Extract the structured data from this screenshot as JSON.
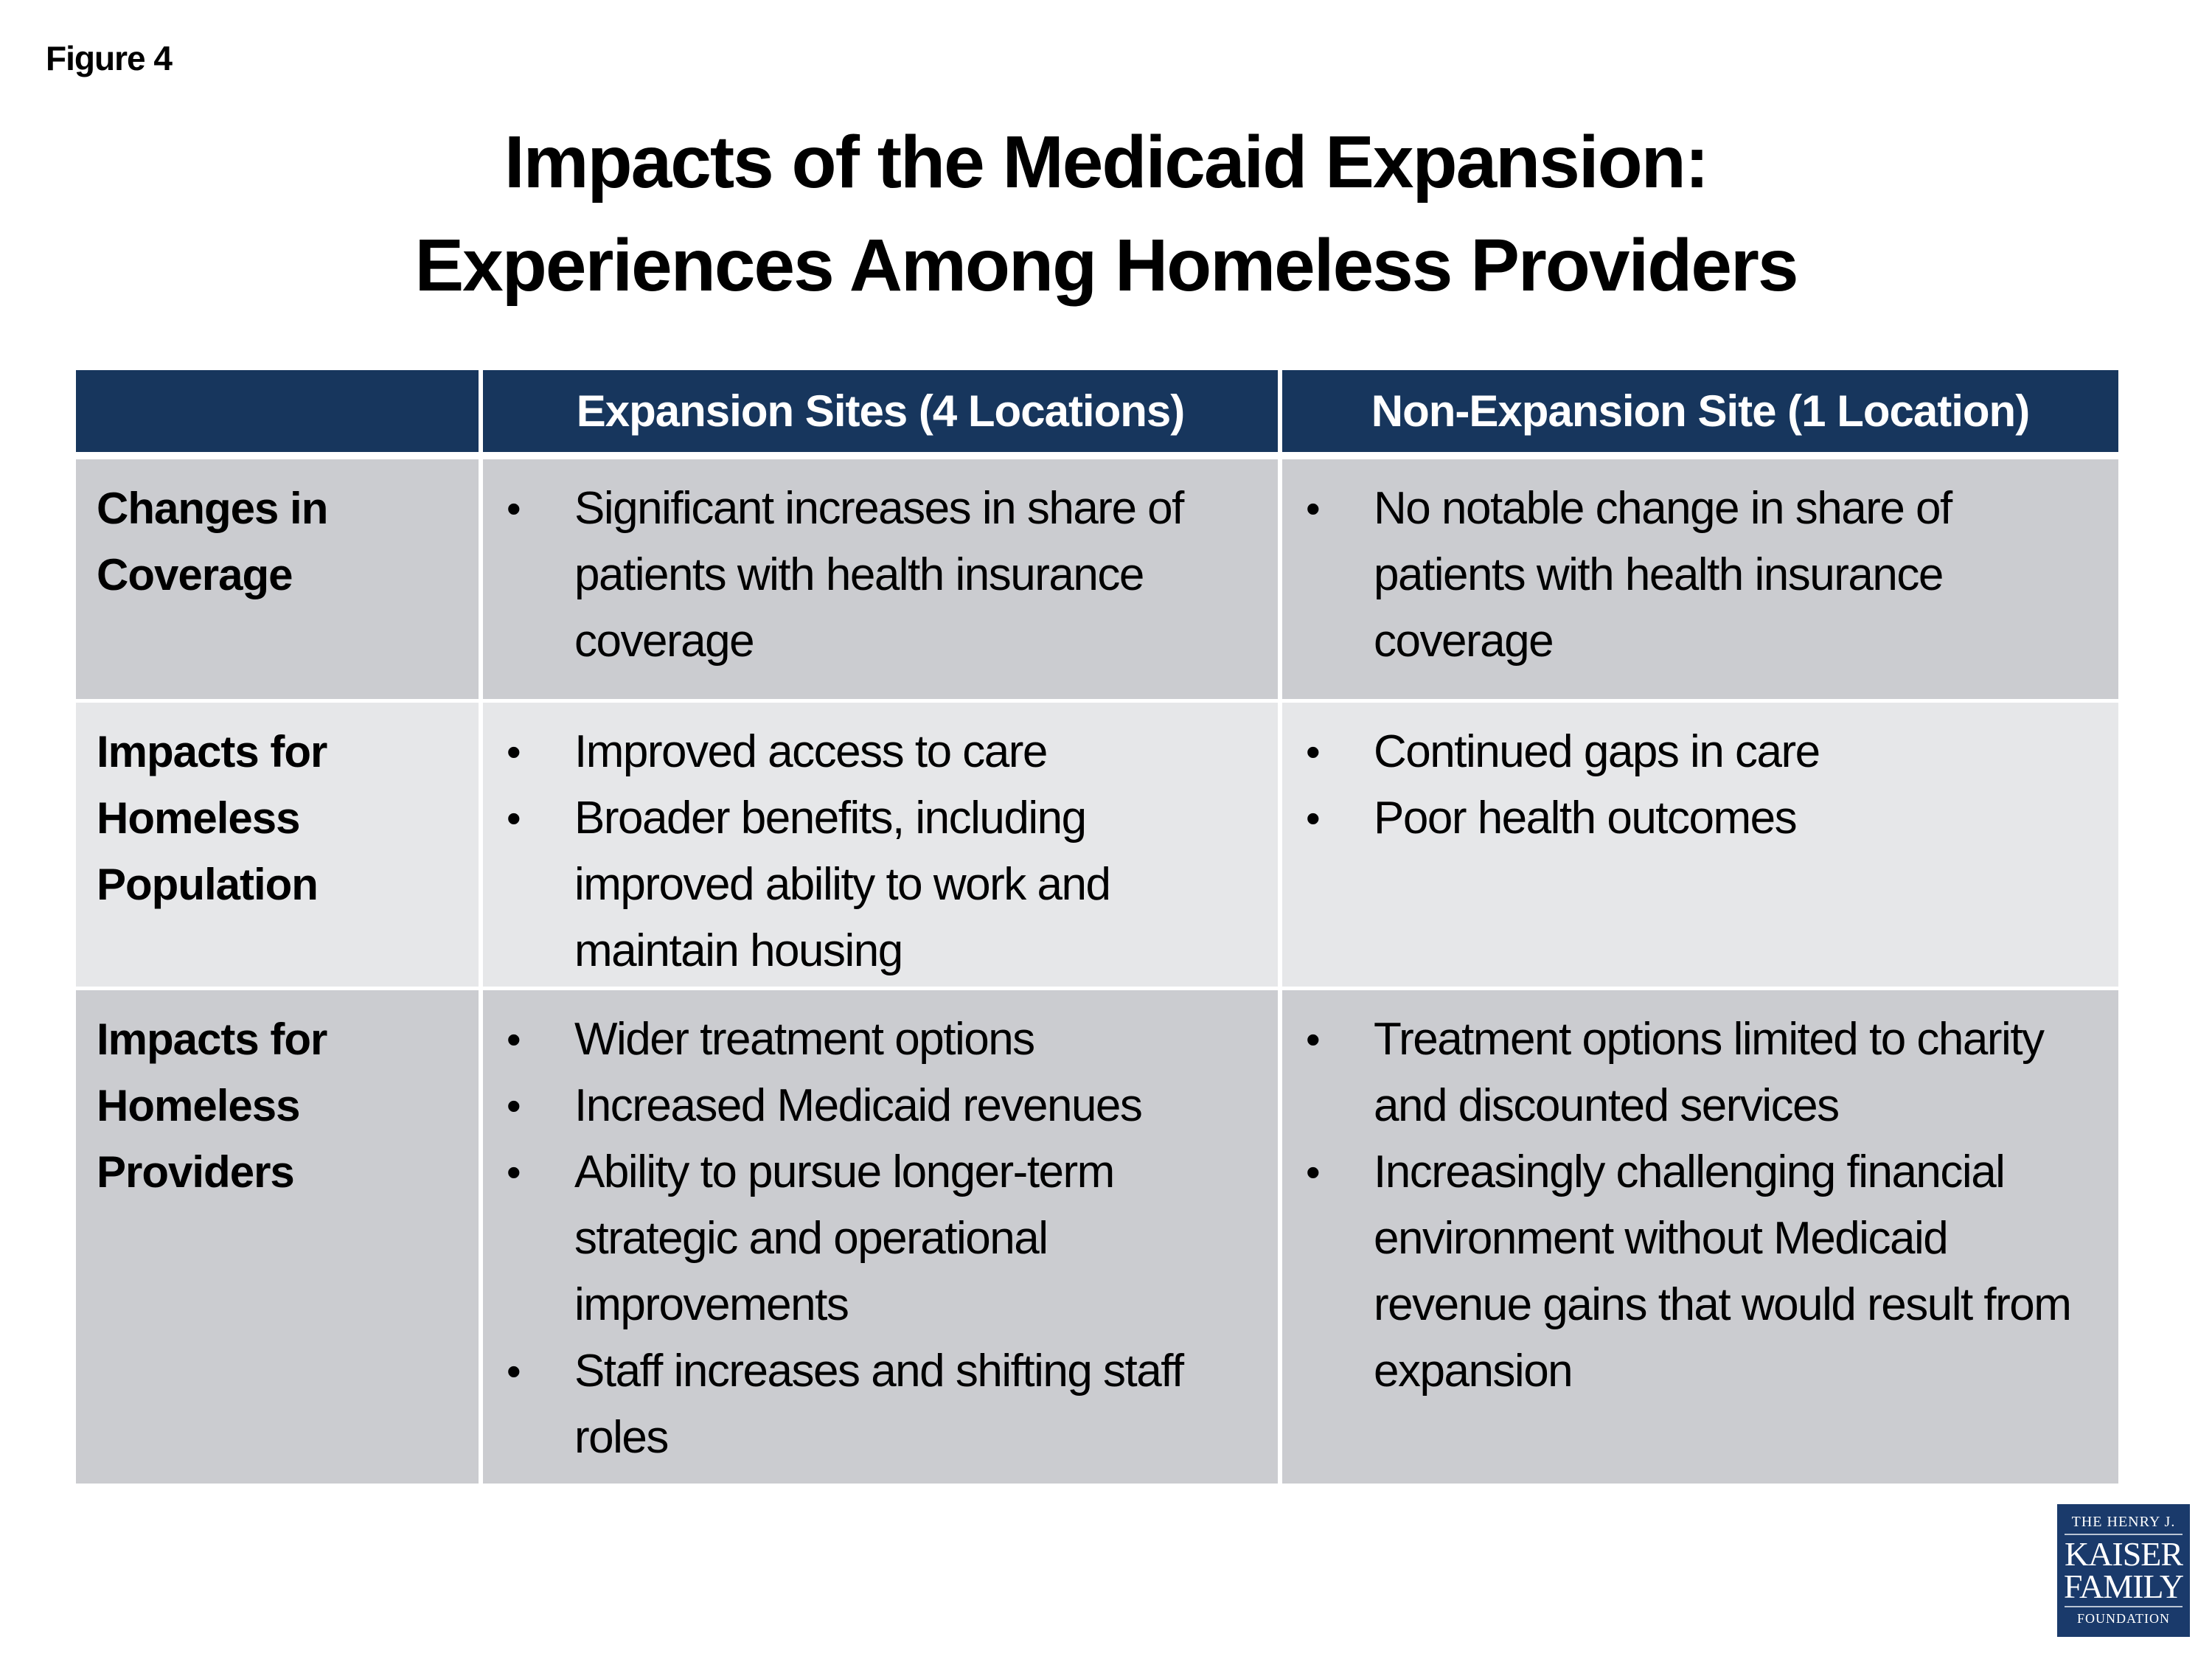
{
  "figure_label": "Figure 4",
  "title": {
    "line1": "Impacts of the Medicaid Expansion:",
    "line2": "Experiences Among Homeless Providers"
  },
  "colors": {
    "header_bg": "#17365D",
    "row_odd_bg": "#CBCCD0",
    "row_even_bg": "#E6E7E9",
    "logo_bg": "#1A3A6B"
  },
  "table": {
    "headers": [
      "",
      "Expansion Sites (4 Locations)",
      "Non-Expansion Site (1 Location)"
    ],
    "rows": [
      {
        "label": [
          "Changes in",
          "Coverage"
        ],
        "expansion": [
          "Significant increases in share of patients with health insurance coverage"
        ],
        "non_expansion": [
          "No notable change in share of patients with health insurance coverage"
        ]
      },
      {
        "label": [
          "Impacts for",
          "Homeless",
          "Population"
        ],
        "expansion": [
          "Improved access to care",
          "Broader benefits, including improved ability to work and maintain housing"
        ],
        "non_expansion": [
          "Continued gaps in care",
          "Poor health outcomes"
        ]
      },
      {
        "label": [
          "Impacts for",
          "Homeless",
          "Providers"
        ],
        "expansion": [
          "Wider treatment options",
          "Increased Medicaid revenues",
          "Ability to pursue longer-term strategic and operational improvements",
          "Staff increases and shifting staff roles"
        ],
        "non_expansion": [
          "Treatment options limited to charity and discounted services",
          "Increasingly challenging financial environment without Medicaid revenue gains that would result from expansion"
        ]
      }
    ]
  },
  "logo": {
    "line1": "THE HENRY J.",
    "line2": "KAISER",
    "line3": "FAMILY",
    "line4": "FOUNDATION"
  }
}
